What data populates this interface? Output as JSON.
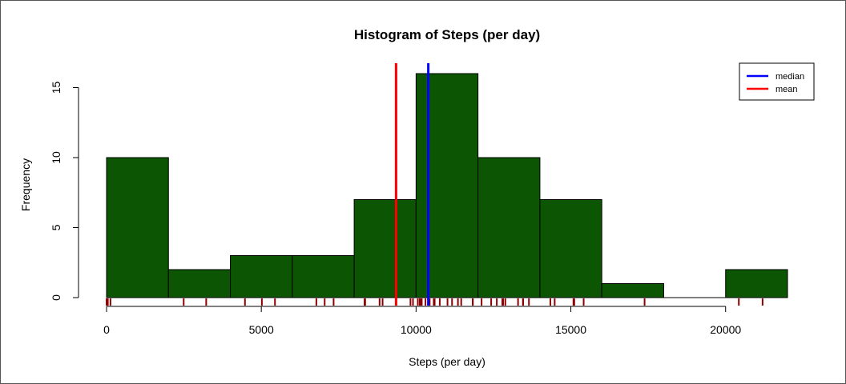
{
  "chart_data": {
    "type": "bar",
    "title": "Histogram of Steps (per day)",
    "xlabel": "Steps (per day)",
    "ylabel": "Frequency",
    "xlim": [
      0,
      22000
    ],
    "ylim": [
      0,
      16
    ],
    "x_ticks": [
      0,
      5000,
      10000,
      15000,
      20000
    ],
    "x_tick_labels": [
      "0",
      "5000",
      "10000",
      "15000",
      "20000"
    ],
    "y_ticks": [
      0,
      5,
      10,
      15
    ],
    "y_tick_labels": [
      "0",
      "5",
      "10",
      "15"
    ],
    "bins": [
      {
        "from": 0,
        "to": 2000,
        "count": 10
      },
      {
        "from": 2000,
        "to": 4000,
        "count": 2
      },
      {
        "from": 4000,
        "to": 6000,
        "count": 3
      },
      {
        "from": 6000,
        "to": 8000,
        "count": 3
      },
      {
        "from": 8000,
        "to": 10000,
        "count": 7
      },
      {
        "from": 10000,
        "to": 12000,
        "count": 16
      },
      {
        "from": 12000,
        "to": 14000,
        "count": 10
      },
      {
        "from": 14000,
        "to": 16000,
        "count": 7
      },
      {
        "from": 16000,
        "to": 18000,
        "count": 1
      },
      {
        "from": 18000,
        "to": 20000,
        "count": 0
      },
      {
        "from": 20000,
        "to": 22000,
        "count": 2
      }
    ],
    "bar_color": "#0b5503",
    "lines": [
      {
        "name": "median",
        "value": 10395,
        "color": "#0000ff"
      },
      {
        "name": "mean",
        "value": 9354,
        "color": "#ff0000"
      }
    ],
    "rug": [
      0,
      41,
      126,
      2492,
      3219,
      4472,
      5018,
      5441,
      6778,
      7047,
      7336,
      8334,
      8355,
      8821,
      8918,
      9819,
      9900,
      10056,
      10119,
      10139,
      10183,
      10304,
      10395,
      10439,
      10571,
      10600,
      10765,
      11015,
      11162,
      11352,
      11458,
      11829,
      11834,
      12116,
      12426,
      12608,
      12787,
      12811,
      12883,
      13294,
      13452,
      13460,
      13646,
      14339,
      14478,
      15084,
      15098,
      15110,
      15414,
      17382,
      20427,
      21194
    ],
    "rug_color": "#8b0000",
    "legend": {
      "position": "top-right",
      "entries": [
        "median",
        "mean"
      ]
    },
    "grid": false
  }
}
